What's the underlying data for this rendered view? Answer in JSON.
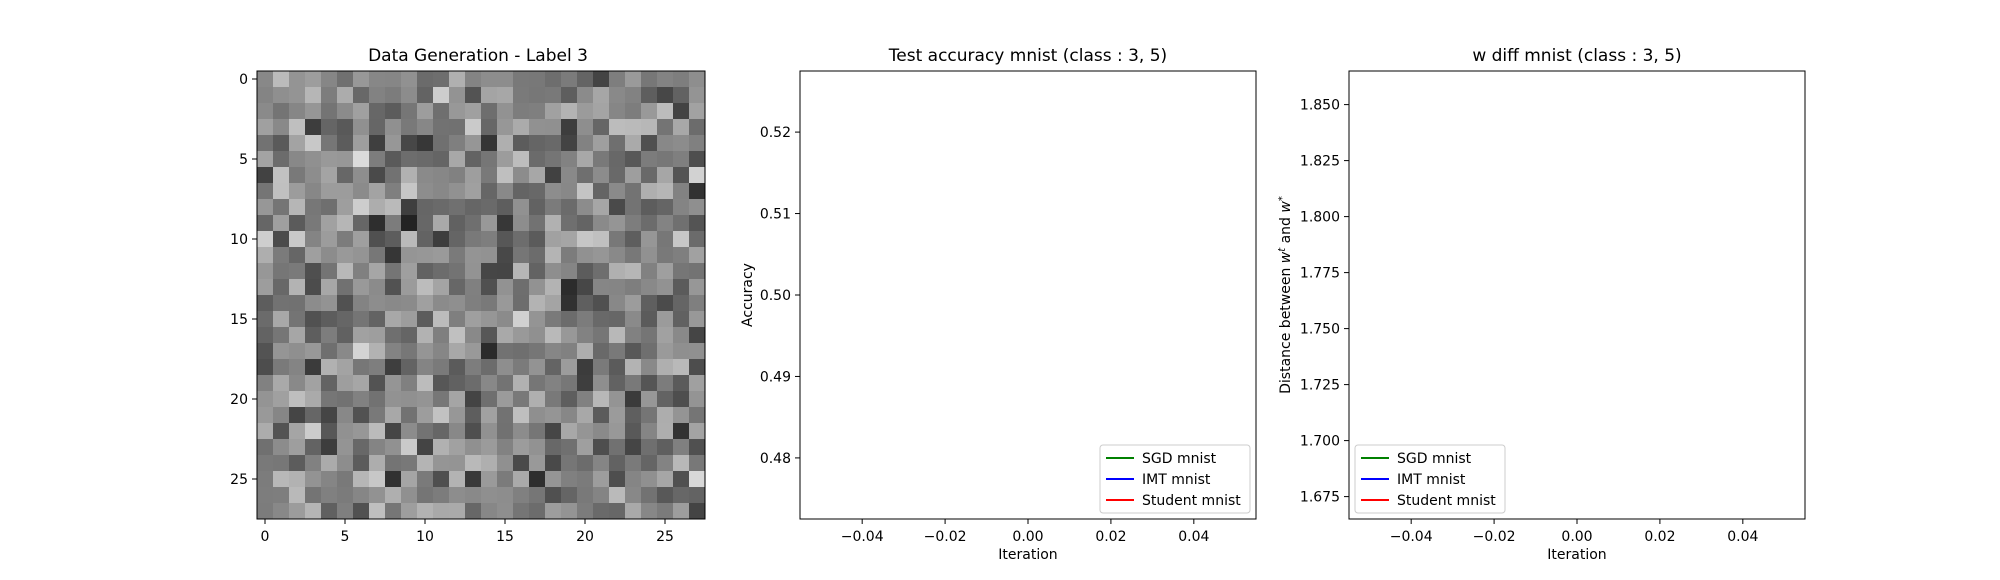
{
  "colors": {
    "sgd": "#008000",
    "imt": "#0000ff",
    "student": "#ff0000"
  },
  "chart_data": [
    {
      "type": "heatmap",
      "title": "Data Generation - Label 3",
      "xlabel": "",
      "ylabel": "",
      "colormap": "gray",
      "xticks": [
        0,
        5,
        10,
        15,
        20,
        25
      ],
      "yticks": [
        0,
        5,
        10,
        15,
        20,
        25
      ],
      "xlim": [
        -0.5,
        27.5
      ],
      "ylim": [
        27.5,
        -0.5
      ],
      "shape": [
        28,
        28
      ],
      "tick_labels_x": [
        "0",
        "5",
        "10",
        "15",
        "20",
        "25"
      ],
      "tick_labels_y": [
        "0",
        "5",
        "10",
        "15",
        "20",
        "25"
      ]
    },
    {
      "type": "line",
      "title": "Test accuracy mnist (class : 3, 5)",
      "xlabel": "Iteration",
      "ylabel": "Accuracy",
      "xlim": [
        -0.055,
        0.055
      ],
      "ylim": [
        0.4725,
        0.5275
      ],
      "xticks": [
        -0.04,
        -0.02,
        0.0,
        0.02,
        0.04
      ],
      "yticks": [
        0.48,
        0.49,
        0.5,
        0.51,
        0.52
      ],
      "tick_labels_x": [
        "−0.04",
        "−0.02",
        "0.00",
        "0.02",
        "0.04"
      ],
      "tick_labels_y": [
        "0.48",
        "0.49",
        "0.50",
        "0.51",
        "0.52"
      ],
      "legend_position": "lower right",
      "series": [
        {
          "name": "SGD mnist",
          "color": "#008000",
          "x": [],
          "y": []
        },
        {
          "name": "IMT mnist",
          "color": "#0000ff",
          "x": [],
          "y": []
        },
        {
          "name": "Student mnist",
          "color": "#ff0000",
          "x": [],
          "y": []
        }
      ]
    },
    {
      "type": "line",
      "title": "w diff mnist (class : 3, 5)",
      "xlabel": "Iteration",
      "ylabel": "Distance between w^t and w^*",
      "xlim": [
        -0.055,
        0.055
      ],
      "ylim": [
        1.665,
        1.865
      ],
      "xticks": [
        -0.04,
        -0.02,
        0.0,
        0.02,
        0.04
      ],
      "yticks": [
        1.675,
        1.7,
        1.725,
        1.75,
        1.775,
        1.8,
        1.825,
        1.85
      ],
      "tick_labels_x": [
        "−0.04",
        "−0.02",
        "0.00",
        "0.02",
        "0.04"
      ],
      "tick_labels_y": [
        "1.675",
        "1.700",
        "1.725",
        "1.750",
        "1.775",
        "1.800",
        "1.825",
        "1.850"
      ],
      "legend_position": "lower left",
      "series": [
        {
          "name": "SGD mnist",
          "color": "#008000",
          "x": [],
          "y": []
        },
        {
          "name": "IMT mnist",
          "color": "#0000ff",
          "x": [],
          "y": []
        },
        {
          "name": "Student mnist",
          "color": "#ff0000",
          "x": [],
          "y": []
        }
      ]
    }
  ]
}
